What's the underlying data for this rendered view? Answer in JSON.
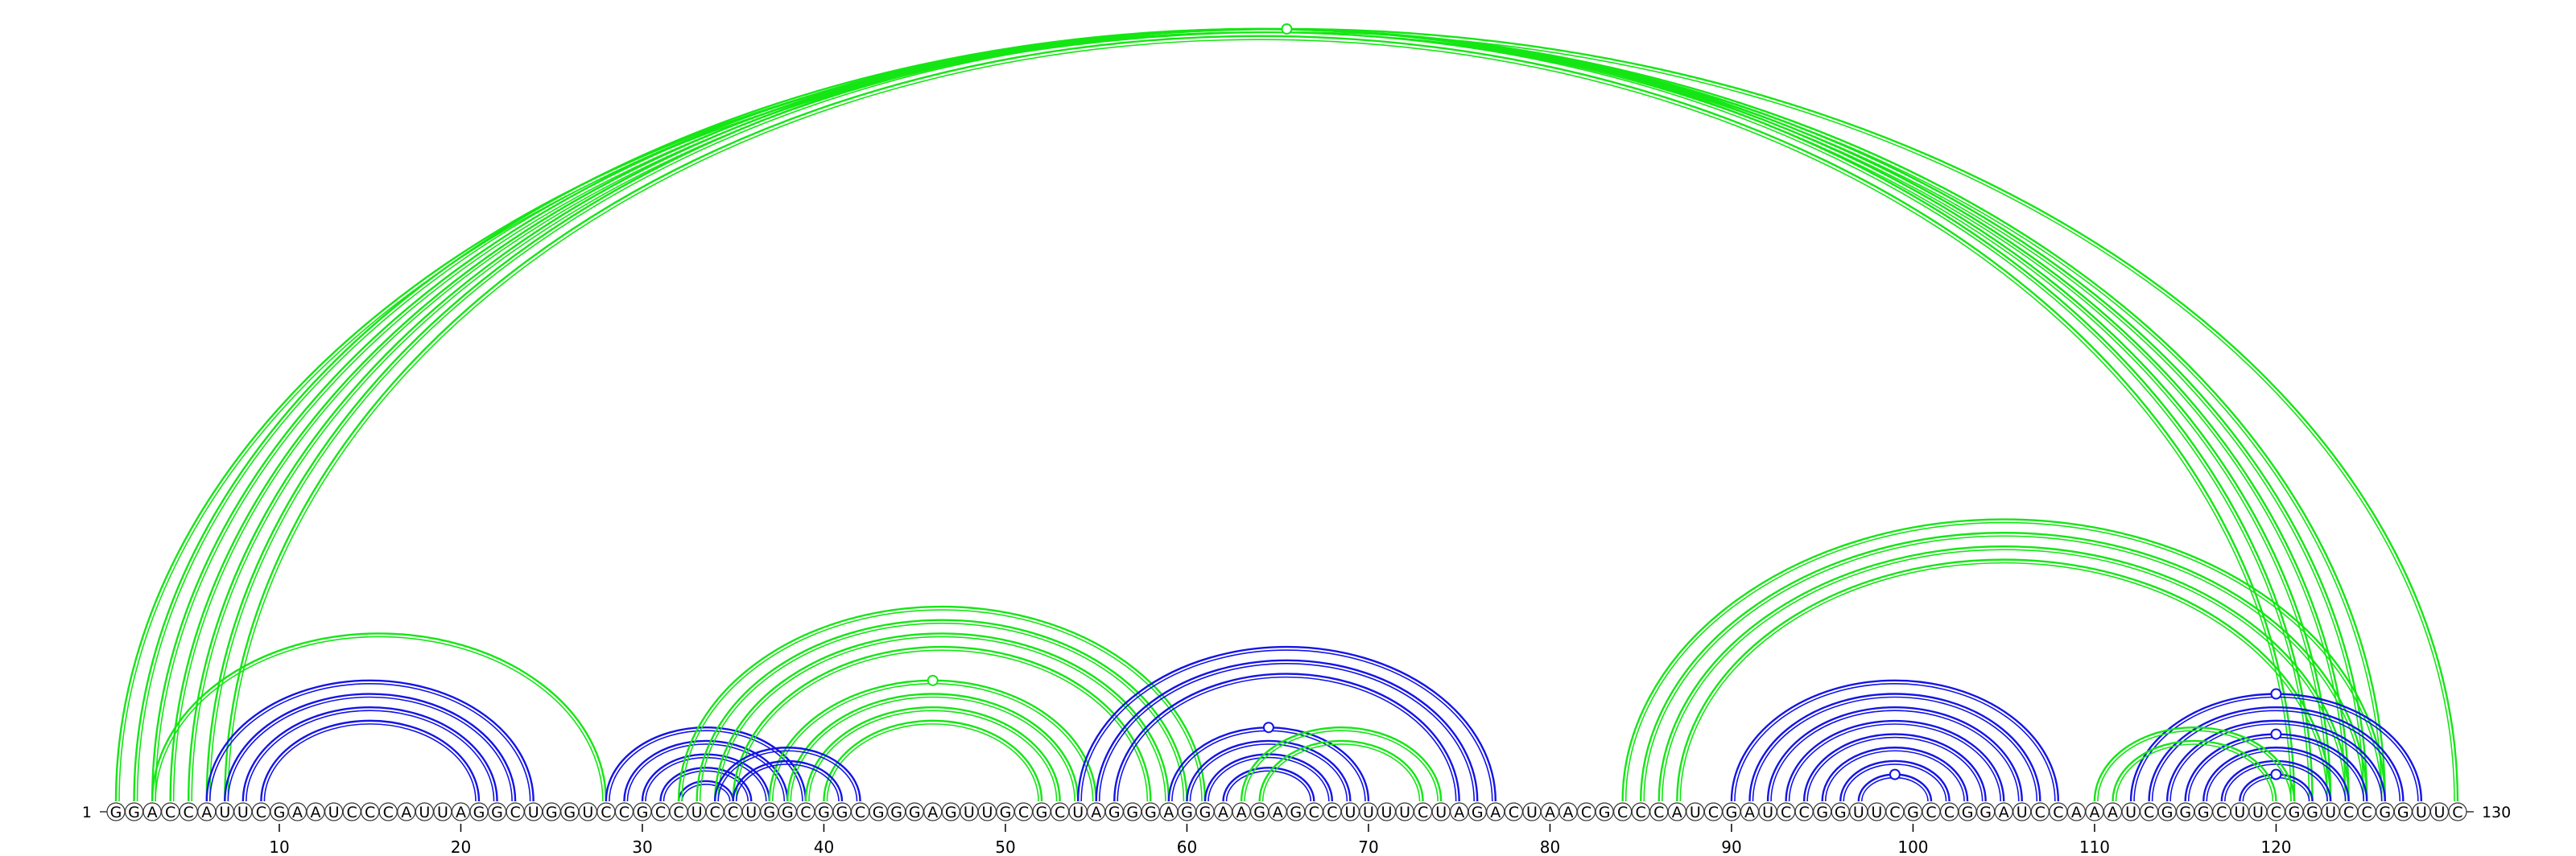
{
  "sequence": "GGACCAUUCGAAUCCCAUUAGGCUGGUCCGCCUCCUGGCGGCGGGAGUUGCGCUAGGGAGGAAGAGCCUUUUCUAGACUAACGCCCAUCGAUCCGGUUCGCCGGAUCCAAAUCGGGCUUCGGUCCGGUUC",
  "start_label": "1",
  "end_label": "130",
  "ticks": [
    10,
    20,
    30,
    40,
    50,
    60,
    70,
    80,
    90,
    100,
    110,
    120
  ],
  "colors": {
    "blue": "#1414e6",
    "green": "#14e614"
  },
  "helices": [
    {
      "color": "green",
      "pairs": [
        [
          2,
          126
        ],
        [
          3,
          125
        ],
        [
          4,
          124
        ],
        [
          5,
          123
        ]
      ]
    },
    {
      "color": "green",
      "pairs": [
        [
          1,
          130
        ],
        [
          6,
          122
        ],
        [
          7,
          121
        ]
      ]
    },
    {
      "color": "green",
      "pairs": [
        [
          3,
          28
        ]
      ]
    },
    {
      "color": "blue",
      "pairs": [
        [
          6,
          24
        ],
        [
          7,
          23
        ],
        [
          8,
          22
        ],
        [
          9,
          21
        ]
      ]
    },
    {
      "color": "blue",
      "pairs": [
        [
          28,
          39
        ],
        [
          29,
          38
        ],
        [
          30,
          37
        ],
        [
          31,
          36
        ],
        [
          32,
          35
        ]
      ]
    },
    {
      "color": "green",
      "pairs": [
        [
          32,
          61
        ],
        [
          33,
          60
        ],
        [
          34,
          59
        ],
        [
          35,
          58
        ]
      ]
    },
    {
      "color": "green",
      "pairs": [
        [
          37,
          55
        ],
        [
          38,
          54
        ],
        [
          39,
          53
        ],
        [
          40,
          52
        ]
      ]
    },
    {
      "color": "blue",
      "pairs": [
        [
          34,
          42
        ],
        [
          35,
          41
        ]
      ]
    },
    {
      "color": "blue",
      "pairs": [
        [
          54,
          77
        ],
        [
          55,
          76
        ],
        [
          56,
          75
        ]
      ]
    },
    {
      "color": "blue",
      "pairs": [
        [
          59,
          70
        ],
        [
          60,
          69
        ],
        [
          61,
          68
        ],
        [
          62,
          67
        ]
      ]
    },
    {
      "color": "green",
      "pairs": [
        [
          63,
          74
        ],
        [
          64,
          73
        ]
      ]
    },
    {
      "color": "green",
      "pairs": [
        [
          84,
          126
        ],
        [
          85,
          125
        ],
        [
          86,
          124
        ],
        [
          87,
          123
        ]
      ]
    },
    {
      "color": "blue",
      "pairs": [
        [
          90,
          108
        ],
        [
          91,
          107
        ],
        [
          92,
          106
        ],
        [
          93,
          105
        ],
        [
          94,
          104
        ],
        [
          95,
          103
        ],
        [
          96,
          102
        ],
        [
          97,
          101
        ]
      ]
    },
    {
      "color": "blue",
      "pairs": [
        [
          112,
          128
        ],
        [
          113,
          127
        ],
        [
          114,
          126
        ],
        [
          115,
          125
        ],
        [
          116,
          124
        ],
        [
          117,
          123
        ],
        [
          118,
          122
        ]
      ]
    },
    {
      "color": "green",
      "pairs": [
        [
          110,
          121
        ],
        [
          111,
          120
        ]
      ]
    }
  ],
  "markers": [
    {
      "color": "green",
      "i": 1,
      "j": 130
    },
    {
      "color": "green",
      "i": 37,
      "j": 55
    },
    {
      "color": "blue",
      "i": 59,
      "j": 70
    },
    {
      "color": "blue",
      "i": 97,
      "j": 101
    },
    {
      "color": "blue",
      "i": 112,
      "j": 128
    },
    {
      "color": "blue",
      "i": 115,
      "j": 125
    },
    {
      "color": "blue",
      "i": 118,
      "j": 122
    }
  ]
}
